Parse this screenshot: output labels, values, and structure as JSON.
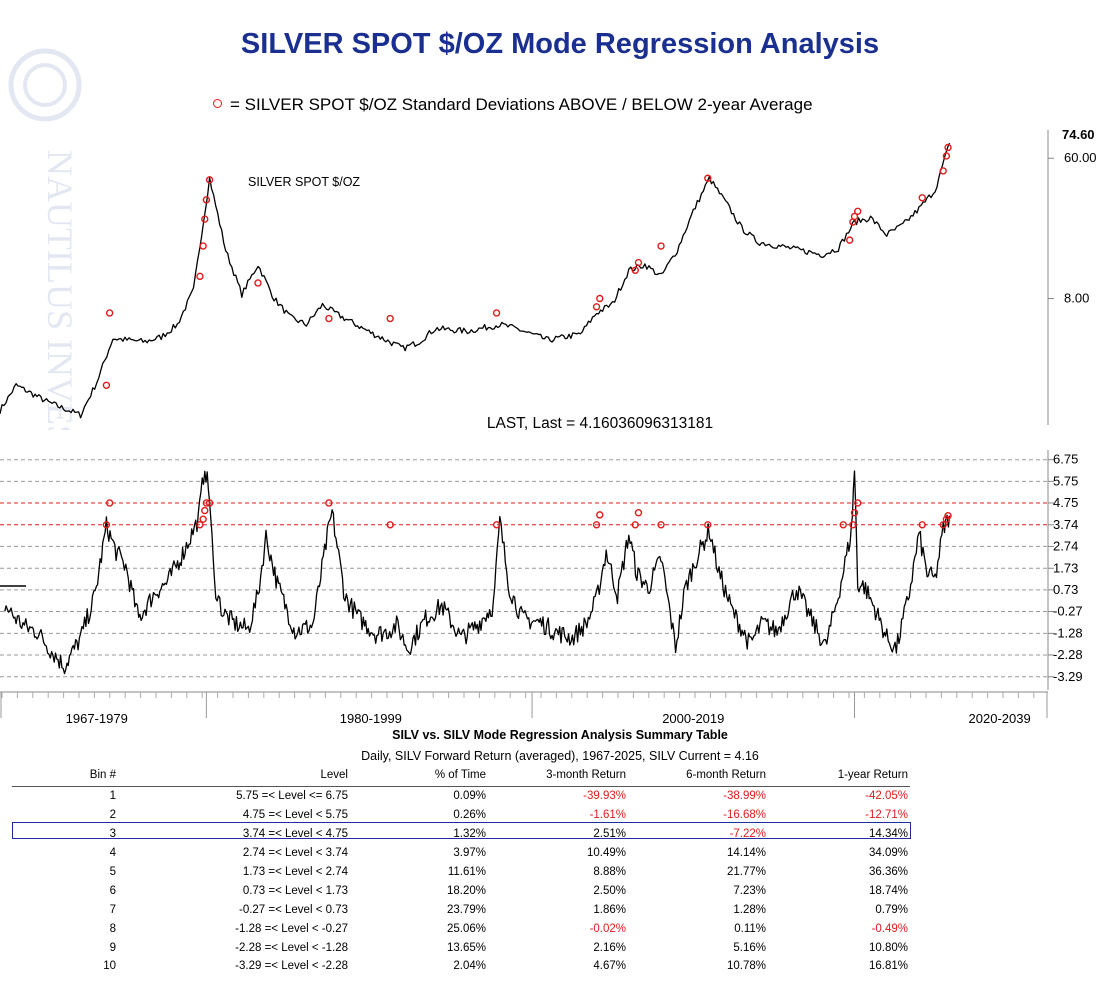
{
  "page": {
    "title": "SILVER SPOT $/OZ Mode Regression Analysis",
    "legend_text": "= SILVER SPOT $/OZ Standard Deviations ABOVE / BELOW 2-year Average",
    "watermark_text": "NAUTILUS INVESTMENT RESEARCH"
  },
  "colors": {
    "title": "#1a2f8f",
    "marker": "#e01b1b",
    "highlight": "#1f2d9e",
    "grid": "#9a9a9a",
    "line": "#000000"
  },
  "chart_data": [
    {
      "type": "line",
      "title": "SILVER SPOT $/OZ",
      "scale": "log",
      "y_tick_labels": [
        "60.00",
        "8.00"
      ],
      "y_ticks": [
        60,
        8
      ],
      "ylim": [
        1.3,
        90
      ],
      "last_value_label": "74.60",
      "last_value": 74.6,
      "x": [
        1967,
        1968,
        1970,
        1972,
        1973,
        1974,
        1975,
        1976,
        1977,
        1978,
        1979,
        1980,
        1981,
        1982,
        1983,
        1984,
        1985,
        1986,
        1987,
        1988,
        1990,
        1992,
        1993,
        1994,
        1996,
        1998,
        1999,
        2001,
        2003,
        2004,
        2005,
        2006,
        2007,
        2008,
        2009,
        2010,
        2011,
        2012,
        2013,
        2014,
        2016,
        2018,
        2019,
        2020,
        2021,
        2022,
        2023,
        2024,
        2025,
        2025.9
      ],
      "values": [
        1.6,
        2.3,
        1.8,
        1.5,
        2.4,
        4.5,
        4.4,
        4.3,
        4.6,
        5.5,
        9.0,
        45.0,
        16.0,
        8.5,
        13.0,
        8.0,
        6.1,
        5.5,
        7.3,
        6.3,
        4.9,
        3.9,
        4.3,
        5.2,
        5.0,
        5.5,
        5.2,
        4.4,
        4.8,
        6.5,
        7.4,
        12.0,
        13.0,
        11.0,
        16.0,
        28.0,
        45.0,
        32.0,
        22.0,
        18.0,
        16.5,
        15.0,
        16.5,
        24.0,
        25.5,
        20.0,
        23.0,
        29.0,
        38.0,
        74.6
      ],
      "marker_x": [
        1973.6,
        1973.8,
        1979.4,
        1979.6,
        1979.7,
        1979.8,
        1980.0,
        1983.0,
        1987.4,
        1991.2,
        1997.8,
        2004.0,
        2004.2,
        2006.4,
        2006.6,
        2008.0,
        2010.9,
        2019.7,
        2019.9,
        2020.0,
        2020.2,
        2024.2,
        2025.5,
        2025.7,
        2025.8
      ],
      "marker_values": [
        2.3,
        6.5,
        11.0,
        17.0,
        25.0,
        33.0,
        44.0,
        10.0,
        6.0,
        6.0,
        6.5,
        7.1,
        8.0,
        12.0,
        13.4,
        17.0,
        45.0,
        18.5,
        24.0,
        26.0,
        28.0,
        34.0,
        50.0,
        62.0,
        70.0
      ]
    },
    {
      "type": "line",
      "title": "LAST, Last = 4.16036096313181",
      "ylim": [
        -3.9,
        7.2
      ],
      "y_tick_labels": [
        "6.75",
        "5.75",
        "4.75",
        "3.74",
        "2.74",
        "1.73",
        "0.73",
        "-0.27",
        "-1.28",
        "-2.28",
        "-3.29"
      ],
      "y_ticks": [
        6.75,
        5.75,
        4.75,
        3.74,
        2.74,
        1.73,
        0.73,
        -0.27,
        -1.28,
        -2.28,
        -3.29
      ],
      "highlighted_levels": [
        4.75,
        3.74
      ],
      "x_tick_labels": [
        "1967-1979",
        "1980-1999",
        "2000-2019",
        "2020-2039"
      ],
      "x_label_positions": [
        1973.0,
        1990.0,
        2010.0,
        2029.0
      ],
      "x_divider_years": [
        1979.8,
        2000.0,
        2020.0
      ],
      "x_domain": [
        1967.0,
        2032.0
      ],
      "x": [
        1967.3,
        1968.0,
        1968.6,
        1969.3,
        1970.2,
        1971.0,
        1972.0,
        1972.9,
        1973.6,
        1974.2,
        1974.8,
        1975.6,
        1976.6,
        1977.4,
        1978.4,
        1979.3,
        1979.7,
        1980.0,
        1980.3,
        1980.8,
        1981.5,
        1982.4,
        1983.0,
        1983.5,
        1984.2,
        1985.3,
        1986.4,
        1987.3,
        1987.6,
        1988.4,
        1989.3,
        1990.3,
        1991.0,
        1991.6,
        1992.3,
        1993.4,
        1994.4,
        1995.6,
        1996.6,
        1997.6,
        1998.0,
        1998.6,
        1999.4,
        2000.6,
        2001.4,
        2002.5,
        2003.4,
        2004.0,
        2004.6,
        2005.3,
        2006.0,
        2006.5,
        2007.2,
        2008.0,
        2008.9,
        2009.5,
        2010.2,
        2011.0,
        2011.6,
        2012.4,
        2013.5,
        2014.3,
        2015.2,
        2016.4,
        2017.3,
        2018.2,
        2019.0,
        2019.5,
        2019.8,
        2020.0,
        2020.2,
        2020.6,
        2021.3,
        2022.0,
        2022.6,
        2023.4,
        2024.0,
        2024.5,
        2025.0,
        2025.5,
        2025.9
      ],
      "values": [
        0.0,
        -0.6,
        -1.0,
        -1.2,
        -2.1,
        -2.8,
        -1.5,
        0.5,
        3.7,
        2.5,
        1.8,
        -0.6,
        0.6,
        1.1,
        2.5,
        4.0,
        6.5,
        5.0,
        1.0,
        -0.3,
        -0.8,
        -1.1,
        0.5,
        3.2,
        1.0,
        -1.2,
        -0.9,
        3.2,
        4.3,
        0.4,
        -0.6,
        -1.3,
        -1.2,
        -0.9,
        -2.0,
        -0.6,
        0.0,
        -1.5,
        -0.9,
        0.0,
        3.9,
        0.8,
        -0.6,
        -0.8,
        -1.2,
        -1.5,
        -0.8,
        0.3,
        2.5,
        0.5,
        3.3,
        1.5,
        0.8,
        2.2,
        -1.9,
        0.8,
        2.2,
        3.5,
        1.5,
        -0.2,
        -1.8,
        -0.8,
        -1.2,
        0.8,
        -0.6,
        -1.9,
        0.5,
        2.3,
        3.4,
        6.3,
        1.0,
        0.9,
        -0.2,
        -1.5,
        -2.0,
        0.6,
        3.3,
        1.5,
        1.2,
        3.5,
        4.16
      ],
      "marker_x": [
        1973.6,
        1973.8,
        1979.4,
        1979.6,
        1979.7,
        1979.8,
        1980.0,
        1987.4,
        1991.2,
        1997.8,
        2004.0,
        2004.2,
        2006.4,
        2006.6,
        2008.0,
        2010.9,
        2019.3,
        2019.9,
        2020.0,
        2020.2,
        2024.2,
        2025.5,
        2025.7,
        2025.8
      ],
      "marker_values": [
        3.74,
        4.75,
        3.74,
        4.0,
        4.4,
        4.75,
        4.75,
        4.75,
        3.74,
        3.74,
        3.74,
        4.2,
        3.74,
        4.3,
        3.74,
        3.74,
        3.74,
        3.74,
        4.3,
        4.75,
        3.74,
        3.74,
        4.0,
        4.16
      ]
    },
    {
      "type": "table",
      "title": "SILV vs. SILV Mode Regression Analysis Summary Table",
      "subtitle": "Daily, SILV Forward Return (averaged), 1967-2025, SILV Current = 4.16",
      "columns": [
        "Bin #",
        "Level",
        "% of Time",
        "3-month Return",
        "6-month Return",
        "1-year Return"
      ],
      "highlighted_row": 3,
      "rows": [
        [
          "1",
          "5.75 =< Level <= 6.75",
          "0.09%",
          "-39.93%",
          "-38.99%",
          "-42.05%"
        ],
        [
          "2",
          "4.75 =< Level < 5.75",
          "0.26%",
          "-1.61%",
          "-16.68%",
          "-12.71%"
        ],
        [
          "3",
          "3.74 =< Level < 4.75",
          "1.32%",
          "2.51%",
          "-7.22%",
          "14.34%"
        ],
        [
          "4",
          "2.74 =< Level < 3.74",
          "3.97%",
          "10.49%",
          "14.14%",
          "34.09%"
        ],
        [
          "5",
          "1.73 =< Level < 2.74",
          "11.61%",
          "8.88%",
          "21.77%",
          "36.36%"
        ],
        [
          "6",
          "0.73 =< Level < 1.73",
          "18.20%",
          "2.50%",
          "7.23%",
          "18.74%"
        ],
        [
          "7",
          "-0.27 =< Level < 0.73",
          "23.79%",
          "1.86%",
          "1.28%",
          "0.79%"
        ],
        [
          "8",
          "-1.28 =< Level < -0.27",
          "25.06%",
          "-0.02%",
          "0.11%",
          "-0.49%"
        ],
        [
          "9",
          "-2.28 =< Level < -1.28",
          "13.65%",
          "2.16%",
          "5.16%",
          "10.80%"
        ],
        [
          "10",
          "-3.29 =< Level < -2.28",
          "2.04%",
          "4.67%",
          "10.78%",
          "16.81%"
        ]
      ]
    }
  ]
}
